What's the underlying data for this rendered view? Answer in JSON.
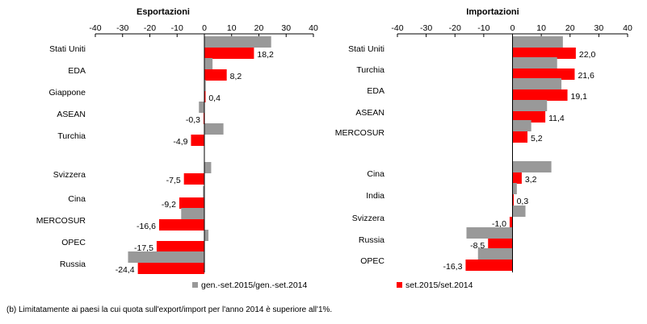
{
  "chart_data": [
    {
      "type": "bar",
      "orientation": "horizontal",
      "title": "Esportazioni",
      "xlim": [
        -40,
        40
      ],
      "xticks": [
        -40,
        -30,
        -20,
        -10,
        0,
        10,
        20,
        30,
        40
      ],
      "categories": [
        "Stati Uniti",
        "EDA",
        "Giappone",
        "ASEAN",
        "Turchia",
        "Svizzera",
        "Cina",
        "MERCOSUR",
        "OPEC",
        "Russia"
      ],
      "series": [
        {
          "name": "gen.-set.2015/gen.-set.2014",
          "color": "#999999",
          "values": [
            24.5,
            3.0,
            0.5,
            -2.0,
            7.0,
            2.5,
            -0.5,
            -8.5,
            1.5,
            -28.0
          ]
        },
        {
          "name": "set.2015/set.2014",
          "color": "#ff0000",
          "values": [
            18.2,
            8.2,
            0.4,
            -0.3,
            -4.9,
            -7.5,
            -9.2,
            -16.6,
            -17.5,
            -24.4
          ]
        }
      ],
      "data_labels": [
        "18,2",
        "8,2",
        "0,4",
        "-0,3",
        "-4,9",
        "-7,5",
        "-9,2",
        "-16,6",
        "-17,5",
        "-24,4"
      ],
      "legend": "bottom"
    },
    {
      "type": "bar",
      "orientation": "horizontal",
      "title": "Importazioni",
      "xlim": [
        -40,
        40
      ],
      "xticks": [
        -40,
        -30,
        -20,
        -10,
        0,
        10,
        20,
        30,
        40
      ],
      "categories": [
        "Stati Uniti",
        "Turchia",
        "EDA",
        "ASEAN",
        "MERCOSUR",
        "Cina",
        "India",
        "Svizzera",
        "Russia",
        "OPEC"
      ],
      "series": [
        {
          "name": "gen.-set.2015/gen.-set.2014",
          "color": "#999999",
          "values": [
            17.5,
            15.5,
            17.0,
            12.0,
            6.5,
            13.5,
            1.5,
            4.5,
            -16.0,
            -12.0
          ]
        },
        {
          "name": "set.2015/set.2014",
          "color": "#ff0000",
          "values": [
            22.0,
            21.6,
            19.1,
            11.4,
            5.2,
            3.2,
            0.3,
            -1.0,
            -8.5,
            -16.3
          ]
        }
      ],
      "data_labels": [
        "22,0",
        "21,6",
        "19,1",
        "11,4",
        "5,2",
        "3,2",
        "0,3",
        "-1,0",
        "-8,5",
        "-16,3"
      ],
      "legend": "bottom"
    }
  ],
  "footnote": "(b) Limitatamente ai paesi la cui quota sull'export/import per l'anno 2014 è superiore all'1%."
}
